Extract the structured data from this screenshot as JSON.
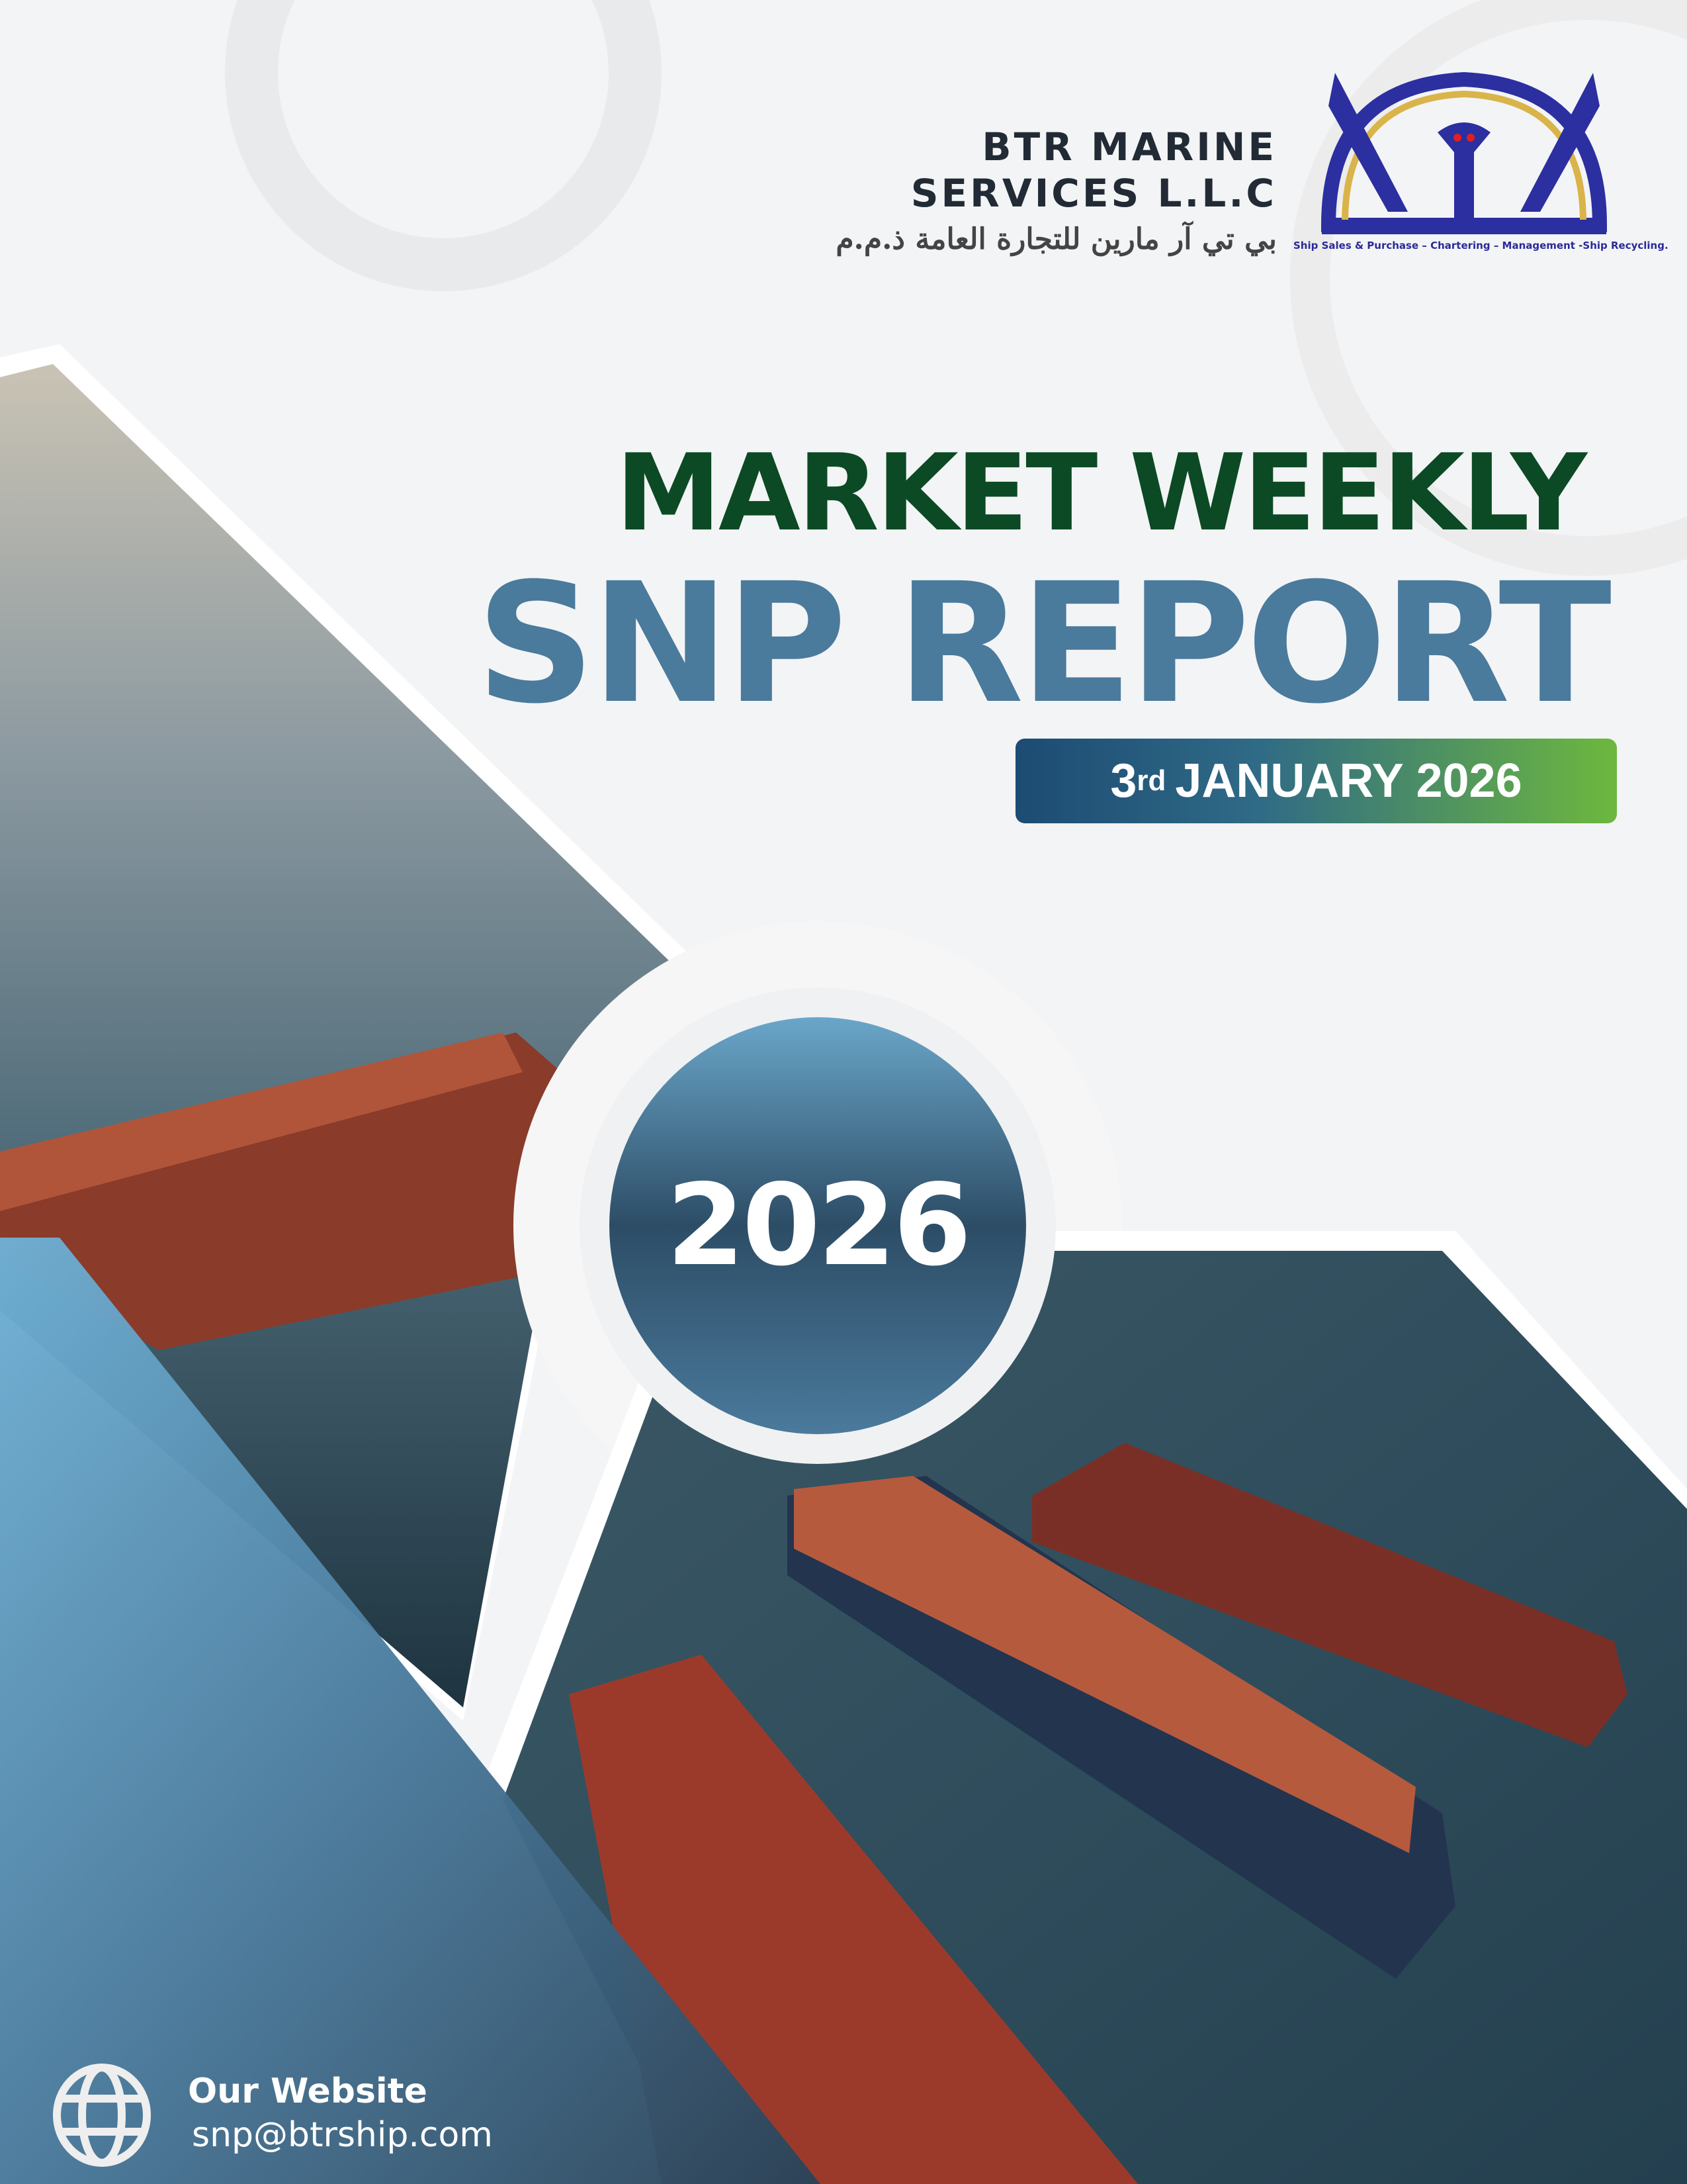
{
  "company": {
    "name_line1": "BTR MARINE",
    "name_line2": "SERVICES L.L.C",
    "name_arabic": "بي تي آر مارين للتجارة العامة ذ.م.م",
    "logo_tagline": "Ship Sales & Purchase – Chartering – Management -Ship Recycling.",
    "logo_colors": {
      "primary": "#2b2fa0",
      "accent": "#d9b44a"
    }
  },
  "title": {
    "line1": "MARKET WEEKLY",
    "line2": "SNP REPORT"
  },
  "date": {
    "day": "3",
    "suffix": "rd",
    "rest": "JANUARY 2026"
  },
  "year_badge": "2026",
  "footer": {
    "label": "Our Website",
    "email": "snp@btrship.com",
    "icon": "globe-icon"
  },
  "colors": {
    "title_green": "#0b4a24",
    "title_blue": "#4a7a9c",
    "badge_start": "#1d4b73",
    "badge_end": "#6db83e"
  }
}
